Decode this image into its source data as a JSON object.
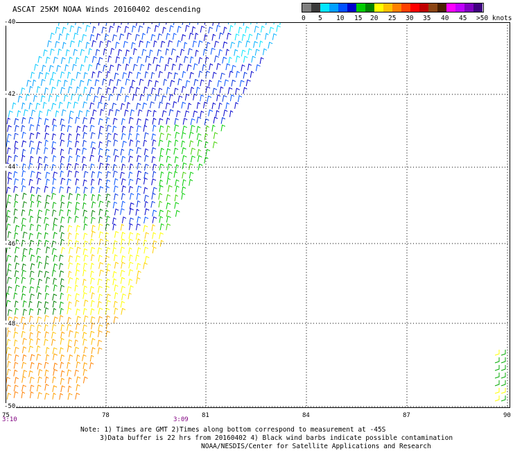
{
  "title": "ASCAT 25KM NOAA Winds 20160402 descending",
  "legend": {
    "colors": [
      "#7f7f7f",
      "#3a3a3a",
      "#00e5ff",
      "#00a0ff",
      "#0050ff",
      "#0000cc",
      "#00cc00",
      "#008000",
      "#ffff00",
      "#ffc000",
      "#ff8000",
      "#ff4000",
      "#ff0000",
      "#c00000",
      "#8b4513",
      "#4a2000",
      "#ff00ff",
      "#c000ff",
      "#8000c0",
      "#400080"
    ],
    "labels": [
      "0",
      "5",
      "10",
      "15",
      "20",
      "25",
      "30",
      "35",
      "40",
      "45",
      ">50 knots"
    ]
  },
  "map": {
    "lat_labels": [
      "-40",
      "-42",
      "-44",
      "-46",
      "-48",
      "-50"
    ],
    "lon_labels": [
      "75",
      "78",
      "81",
      "84",
      "87",
      "90"
    ],
    "time_labels": [
      "3:10",
      "3:09"
    ]
  },
  "notes": [
    "Note: 1) Times are GMT 2)Times along bottom correspond to measurement at -45S",
    "3)Data buffer is 22 hrs from 20160402 4) Black wind barbs indicate possible contamination",
    "NOAA/NESDIS/Center for Satellite Applications and Research"
  ]
}
